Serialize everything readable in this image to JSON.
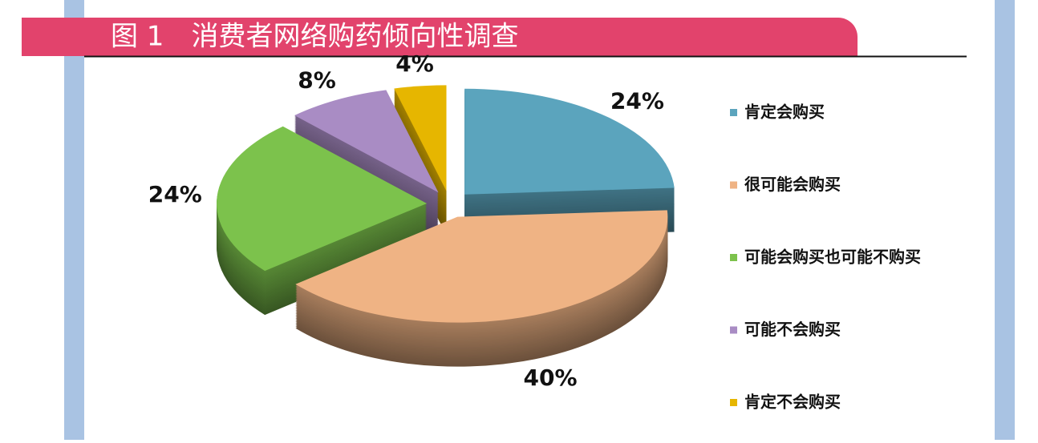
{
  "chart_data": {
    "type": "pie3d",
    "title": "图 1　消费者网络购药倾向性调查",
    "categories": [
      "肯定会购买",
      "很可能会购买",
      "可能会购买也可能不购买",
      "可能不会购买",
      "肯定不会购买"
    ],
    "values": [
      24,
      40,
      24,
      8,
      4
    ],
    "value_labels": [
      "24%",
      "40%",
      "24%",
      "8%",
      "4%"
    ],
    "colors": [
      "#5ba4bd",
      "#efb384",
      "#7cc24c",
      "#a98cc4",
      "#e6b600"
    ]
  }
}
